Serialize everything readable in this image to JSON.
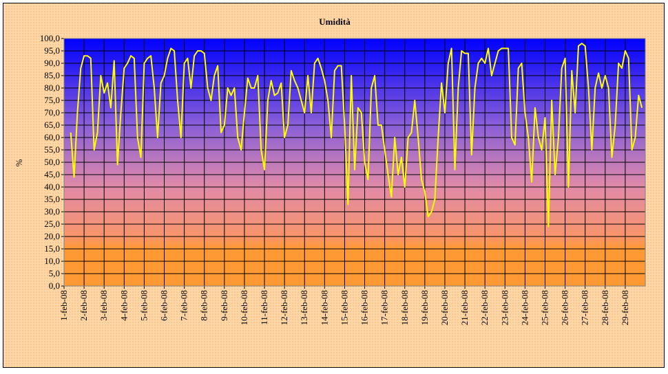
{
  "chart_data": {
    "type": "line",
    "title": "Umidità",
    "y_label": "%",
    "color": "#ffff00",
    "categories": [
      "1-feb-08",
      null,
      null,
      null,
      null,
      null,
      "2-feb-08",
      null,
      null,
      null,
      null,
      null,
      "3-feb-08",
      null,
      null,
      null,
      null,
      null,
      "4-feb-08",
      null,
      null,
      null,
      null,
      null,
      "5-feb-08",
      null,
      null,
      null,
      null,
      null,
      "6-feb-08",
      null,
      null,
      null,
      null,
      null,
      "7-feb-08",
      null,
      null,
      null,
      null,
      null,
      "8-feb-08",
      null,
      null,
      null,
      null,
      null,
      "9-feb-08",
      null,
      null,
      null,
      null,
      null,
      "10-feb-08",
      null,
      null,
      null,
      null,
      null,
      "11-feb-08",
      null,
      null,
      null,
      null,
      null,
      "12-feb-08",
      null,
      null,
      null,
      null,
      null,
      "13-feb-08",
      null,
      null,
      null,
      null,
      null,
      "14-feb-08",
      null,
      null,
      null,
      null,
      null,
      "15-feb-08",
      null,
      null,
      null,
      null,
      null,
      "16-feb-08",
      null,
      null,
      null,
      null,
      null,
      "17-feb-08",
      null,
      null,
      null,
      null,
      null,
      "18-feb-08",
      null,
      null,
      null,
      null,
      null,
      "19-feb-08",
      null,
      null,
      null,
      null,
      null,
      "20-feb-08",
      null,
      null,
      null,
      null,
      null,
      "21-feb-08",
      null,
      null,
      null,
      null,
      null,
      "22-feb-08",
      null,
      null,
      null,
      null,
      null,
      "23-feb-08",
      null,
      null,
      null,
      null,
      null,
      "24-feb-08",
      null,
      null,
      null,
      null,
      null,
      "25-feb-08",
      null,
      null,
      null,
      null,
      null,
      "26-feb-08",
      null,
      null,
      null,
      null,
      null,
      "27-feb-08",
      null,
      null,
      null,
      null,
      null,
      "28-feb-08",
      null,
      null,
      null,
      null,
      null,
      "29-feb-08",
      null,
      null,
      null,
      null,
      null
    ],
    "values": [
      null,
      null,
      62,
      44,
      70,
      88,
      93,
      93,
      92,
      55,
      62,
      85,
      78,
      82,
      72,
      91,
      49,
      70,
      88,
      90,
      93,
      92,
      60,
      52,
      90,
      92,
      93,
      80,
      60,
      82,
      85,
      92,
      96,
      95,
      75,
      60,
      90,
      92,
      80,
      93,
      95,
      95,
      94,
      80,
      75,
      85,
      89,
      62,
      65,
      80,
      77,
      80,
      60,
      55,
      70,
      84,
      80,
      80,
      85,
      55,
      47,
      75,
      83,
      77,
      78,
      82,
      60,
      65,
      87,
      83,
      80,
      75,
      70,
      85,
      70,
      90,
      92,
      88,
      83,
      75,
      60,
      87,
      89,
      89,
      65,
      33,
      85,
      47,
      72,
      70,
      50,
      43,
      80,
      85,
      65,
      65,
      55,
      45,
      36,
      60,
      45,
      52,
      40,
      60,
      62,
      75,
      60,
      43,
      38,
      28,
      30,
      35,
      60,
      82,
      70,
      90,
      96,
      47,
      80,
      95,
      94,
      94,
      53,
      80,
      90,
      92,
      90,
      96,
      85,
      90,
      95,
      96,
      96,
      96,
      60,
      57,
      88,
      90,
      70,
      60,
      42,
      72,
      60,
      55,
      68,
      24,
      75,
      45,
      60,
      88,
      92,
      40,
      87,
      70,
      97,
      98,
      97,
      80,
      55,
      80,
      86,
      80,
      85,
      80,
      52,
      65,
      90,
      88,
      95,
      92,
      55,
      60,
      77,
      72
    ],
    "ylim": [
      0,
      100
    ],
    "yticks": [
      {
        "value": 0,
        "label": "0,0"
      },
      {
        "value": 5,
        "label": "5,0"
      },
      {
        "value": 10,
        "label": "10,0"
      },
      {
        "value": 15,
        "label": "15,0"
      },
      {
        "value": 20,
        "label": "20,0"
      },
      {
        "value": 25,
        "label": "25,0"
      },
      {
        "value": 30,
        "label": "30,0"
      },
      {
        "value": 35,
        "label": "35,0"
      },
      {
        "value": 40,
        "label": "40,0"
      },
      {
        "value": 45,
        "label": "45,0"
      },
      {
        "value": 50,
        "label": "50,0"
      },
      {
        "value": 55,
        "label": "55,0"
      },
      {
        "value": 60,
        "label": "60,0"
      },
      {
        "value": 65,
        "label": "65,0"
      },
      {
        "value": 70,
        "label": "70,0"
      },
      {
        "value": 75,
        "label": "75,0"
      },
      {
        "value": 80,
        "label": "80,0"
      },
      {
        "value": 85,
        "label": "85,0"
      },
      {
        "value": 90,
        "label": "90,0"
      },
      {
        "value": 95,
        "label": "95,0"
      },
      {
        "value": 100,
        "label": "100,0"
      }
    ],
    "grid": true
  }
}
